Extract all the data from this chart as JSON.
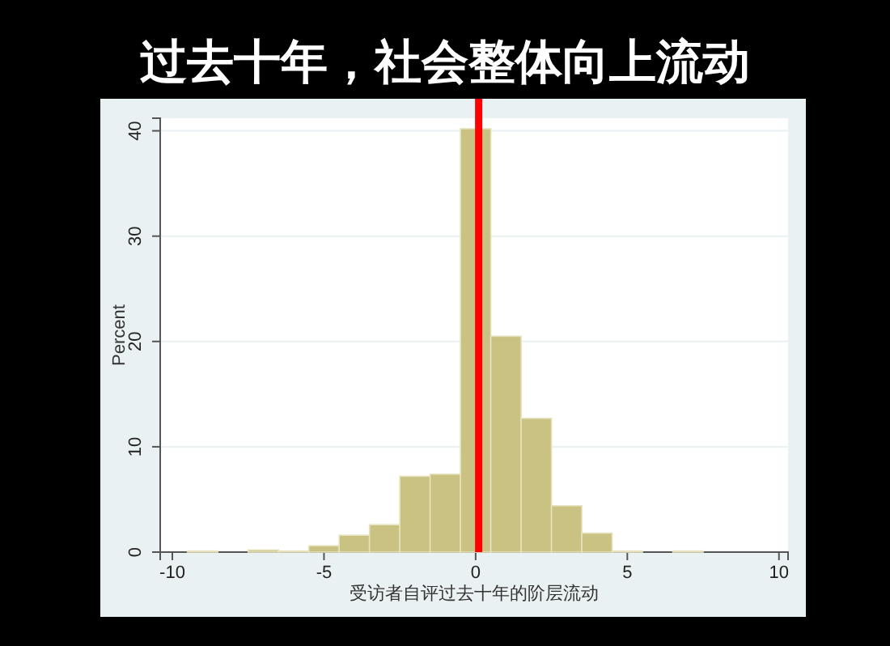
{
  "chart_data": {
    "type": "histogram",
    "title": "过去十年，社会整体向上流动",
    "xlabel": "受访者自评过去十年的阶层流动",
    "ylabel": "Percent",
    "bins": [
      -9.5,
      -8.5,
      -7.5,
      -6.5,
      -5.5,
      -4.5,
      -3.5,
      -2.5,
      -1.5,
      -0.5,
      0.5,
      1.5,
      2.5,
      3.5,
      4.5,
      5.5,
      6.5,
      7.5
    ],
    "values": [
      0.1,
      0,
      0.2,
      0.1,
      0.6,
      1.6,
      2.6,
      7.2,
      7.4,
      40.2,
      20.5,
      12.7,
      4.4,
      1.8,
      0.1,
      0,
      0.1
    ],
    "color": "#c9c283",
    "xlim": [
      -10.4,
      10.3
    ],
    "xticks": [
      -10,
      -5,
      0,
      5,
      10
    ],
    "ylim": [
      0,
      41.2
    ],
    "yticks": [
      0,
      10,
      20,
      30,
      40
    ],
    "grid": "y",
    "ref_lines": [
      {
        "axis": "x",
        "value": 0.1,
        "color": "#ff0000"
      }
    ]
  }
}
